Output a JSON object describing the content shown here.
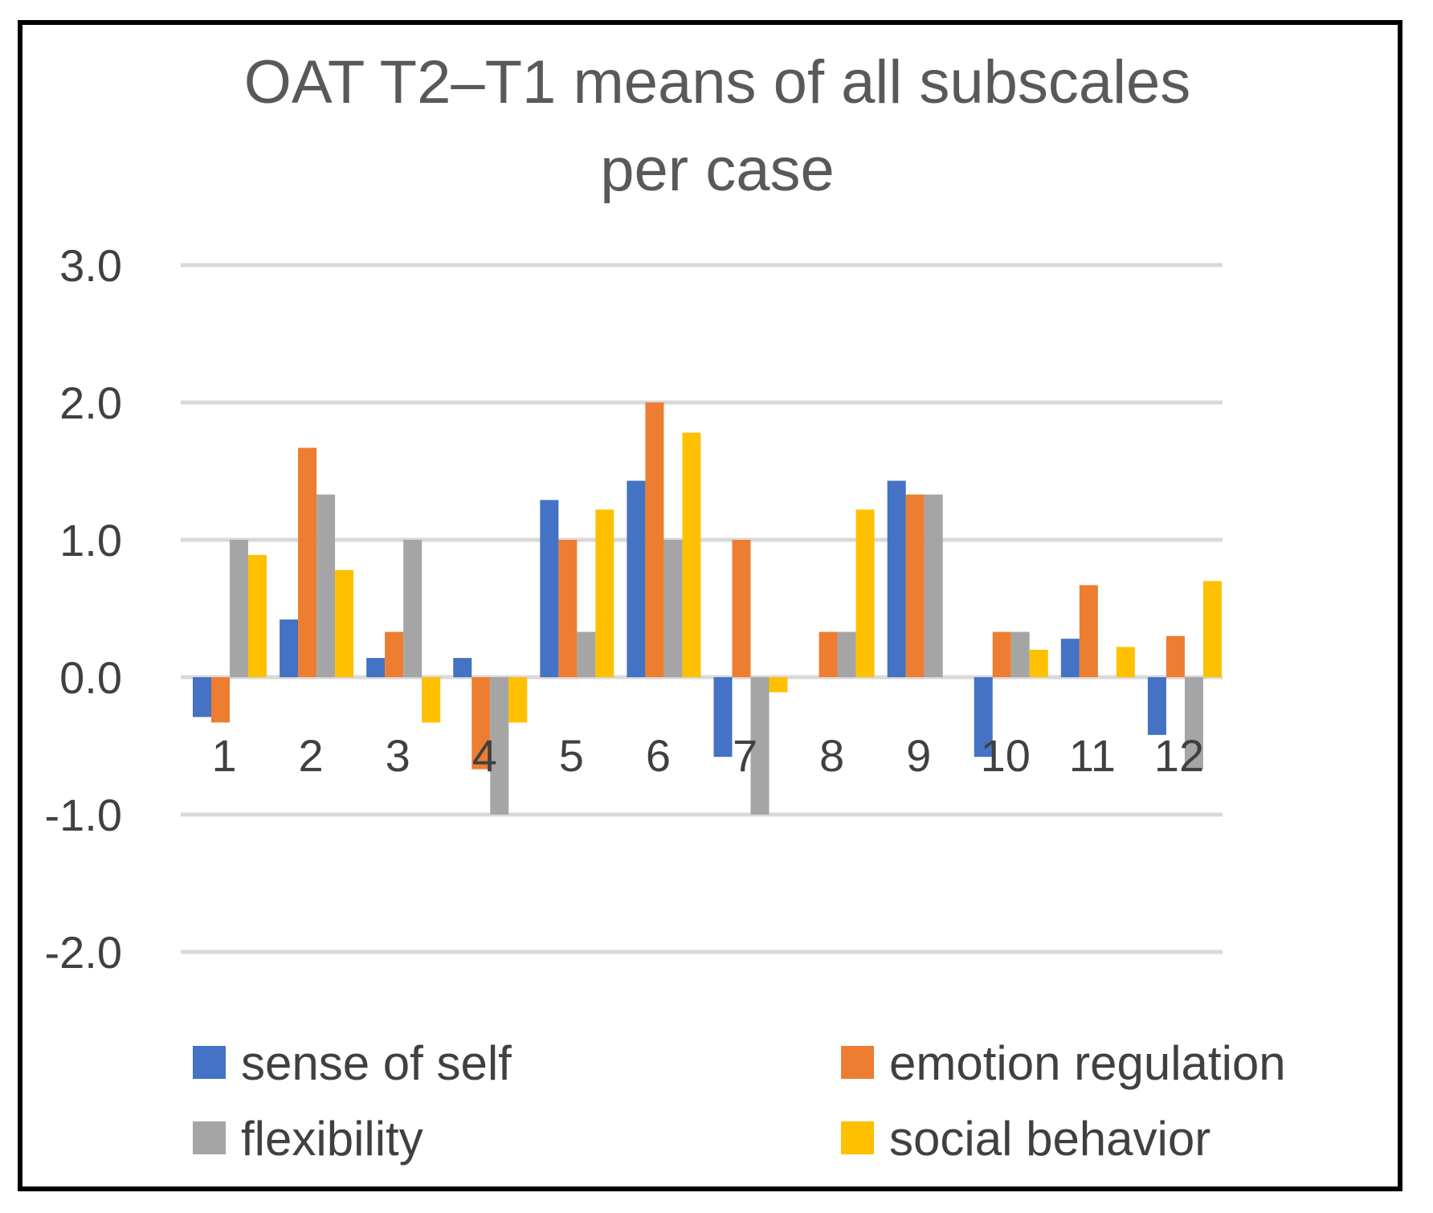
{
  "chart_data": {
    "type": "bar",
    "title": "OAT T2–T1 means of all subscales per case",
    "title_lines": [
      "OAT T2–T1 means of all subscales",
      "per case"
    ],
    "xlabel": "",
    "ylabel": "",
    "ylim": [
      -2.0,
      3.0
    ],
    "yticks": [
      3.0,
      2.0,
      1.0,
      0.0,
      -1.0,
      -2.0
    ],
    "ytick_labels": [
      "3.0",
      "2.0",
      "1.0",
      "0.0",
      "-1.0",
      "-2.0"
    ],
    "grid": true,
    "legend_position": "bottom",
    "categories": [
      "1",
      "2",
      "3",
      "4",
      "5",
      "6",
      "7",
      "8",
      "9",
      "10",
      "11",
      "12"
    ],
    "series": [
      {
        "name": "sense of self",
        "color": "#4472C4",
        "values": [
          -0.29,
          0.42,
          0.14,
          0.14,
          1.29,
          1.43,
          -0.58,
          0.0,
          1.43,
          -0.58,
          0.28,
          -0.42
        ]
      },
      {
        "name": "emotion regulation",
        "color": "#ED7D31",
        "values": [
          -0.33,
          1.67,
          0.33,
          -0.67,
          1.0,
          2.0,
          1.0,
          0.33,
          1.33,
          0.33,
          0.67,
          0.3
        ]
      },
      {
        "name": "flexibility",
        "color": "#A5A5A5",
        "values": [
          1.0,
          1.33,
          1.0,
          -1.0,
          0.33,
          1.0,
          -1.0,
          0.33,
          1.33,
          0.33,
          0.0,
          -0.67
        ]
      },
      {
        "name": "social behavior",
        "color": "#FFC000",
        "values": [
          0.89,
          0.78,
          -0.33,
          -0.33,
          1.22,
          1.78,
          -0.11,
          1.22,
          0.0,
          0.2,
          0.22,
          0.7
        ]
      }
    ]
  }
}
